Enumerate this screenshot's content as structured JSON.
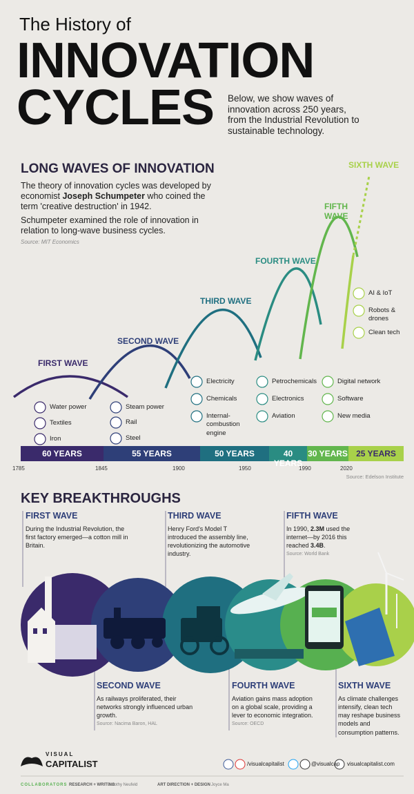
{
  "header": {
    "pretitle": "The History of",
    "title_line1": "INNOVATION",
    "title_line2": "CYCLES",
    "intro": "Below, we show waves of innovation across 250 years, from the Industrial Revolution to sustainable technology."
  },
  "long_waves": {
    "heading": "LONG WAVES OF INNOVATION",
    "paragraph1": {
      "before": "The theory of innovation cycles was developed by economist ",
      "bold": "Joseph Schumpeter",
      "after": " who coined the term 'creative destruction' in 1942."
    },
    "paragraph2": "Schumpeter examined the role of innovation in relation to long-wave business cycles.",
    "source": "Source: MIT Economics",
    "waves": [
      {
        "name": "FIRST WAVE",
        "duration": "60 YEARS",
        "innovations": [
          "Water power",
          "Textiles",
          "Iron"
        ]
      },
      {
        "name": "SECOND WAVE",
        "duration": "55 YEARS",
        "innovations": [
          "Steam power",
          "Rail",
          "Steel"
        ]
      },
      {
        "name": "THIRD WAVE",
        "duration": "50 YEARS",
        "innovations": [
          "Electricity",
          "Chemicals",
          "Internal-combustion engine"
        ]
      },
      {
        "name": "FOURTH WAVE",
        "duration": "40 YEARS",
        "innovations": [
          "Petrochemicals",
          "Electronics",
          "Aviation"
        ]
      },
      {
        "name": "FIFTH WAVE",
        "duration": "30 YEARS",
        "innovations": [
          "Digital network",
          "Software",
          "New media"
        ]
      },
      {
        "name": "SIXTH WAVE",
        "duration": "25 YEARS",
        "innovations": [
          "AI & IoT",
          "Robots & drones",
          "Clean tech"
        ]
      }
    ],
    "years": [
      "1785",
      "1845",
      "1900",
      "1950",
      "1990",
      "2020"
    ],
    "timeline_source": "Source: Edelson Institute"
  },
  "key_breakthroughs": {
    "heading": "KEY BREAKTHROUGHS",
    "items": [
      {
        "title": "FIRST WAVE",
        "text": "During the Industrial Revolution, the first factory emerged—a cotton mill in Britain."
      },
      {
        "title": "SECOND WAVE",
        "text": "As railways proliferated, their networks strongly influenced urban growth.",
        "source": "Source: Nacima Baron, HAL"
      },
      {
        "title": "THIRD WAVE",
        "text": "Henry Ford's Model T introduced the assembly line, revolutionizing the automotive industry."
      },
      {
        "title": "FOURTH WAVE",
        "text": "Aviation gains mass adoption on a global scale, providing a lever to economic integration.",
        "source": "Source: OECD"
      },
      {
        "title": "FIFTH WAVE",
        "text": {
          "part1": "In 1990, ",
          "bold1": "2.3M",
          "part2": " used the internet—by 2016 this reached ",
          "bold2": "3.4B",
          "part3": "."
        },
        "source": "Source: World Bank"
      },
      {
        "title": "SIXTH WAVE",
        "text": "As climate challenges intensify, clean tech may reshape business models and consumption patterns."
      }
    ]
  },
  "footer": {
    "brand_top": "VISUAL",
    "brand_bottom": "CAPITALIST",
    "social_1": "/visualcapitalist",
    "social_2": "@visualcap",
    "website": "visualcapitalist.com",
    "collaborators": "COLLABORATORS",
    "role_1": "RESEARCH + WRITING",
    "person_1": "Dorothy Neufeld",
    "role_2": "ART DIRECTION + DESIGN",
    "person_2": "Joyce Ma"
  }
}
